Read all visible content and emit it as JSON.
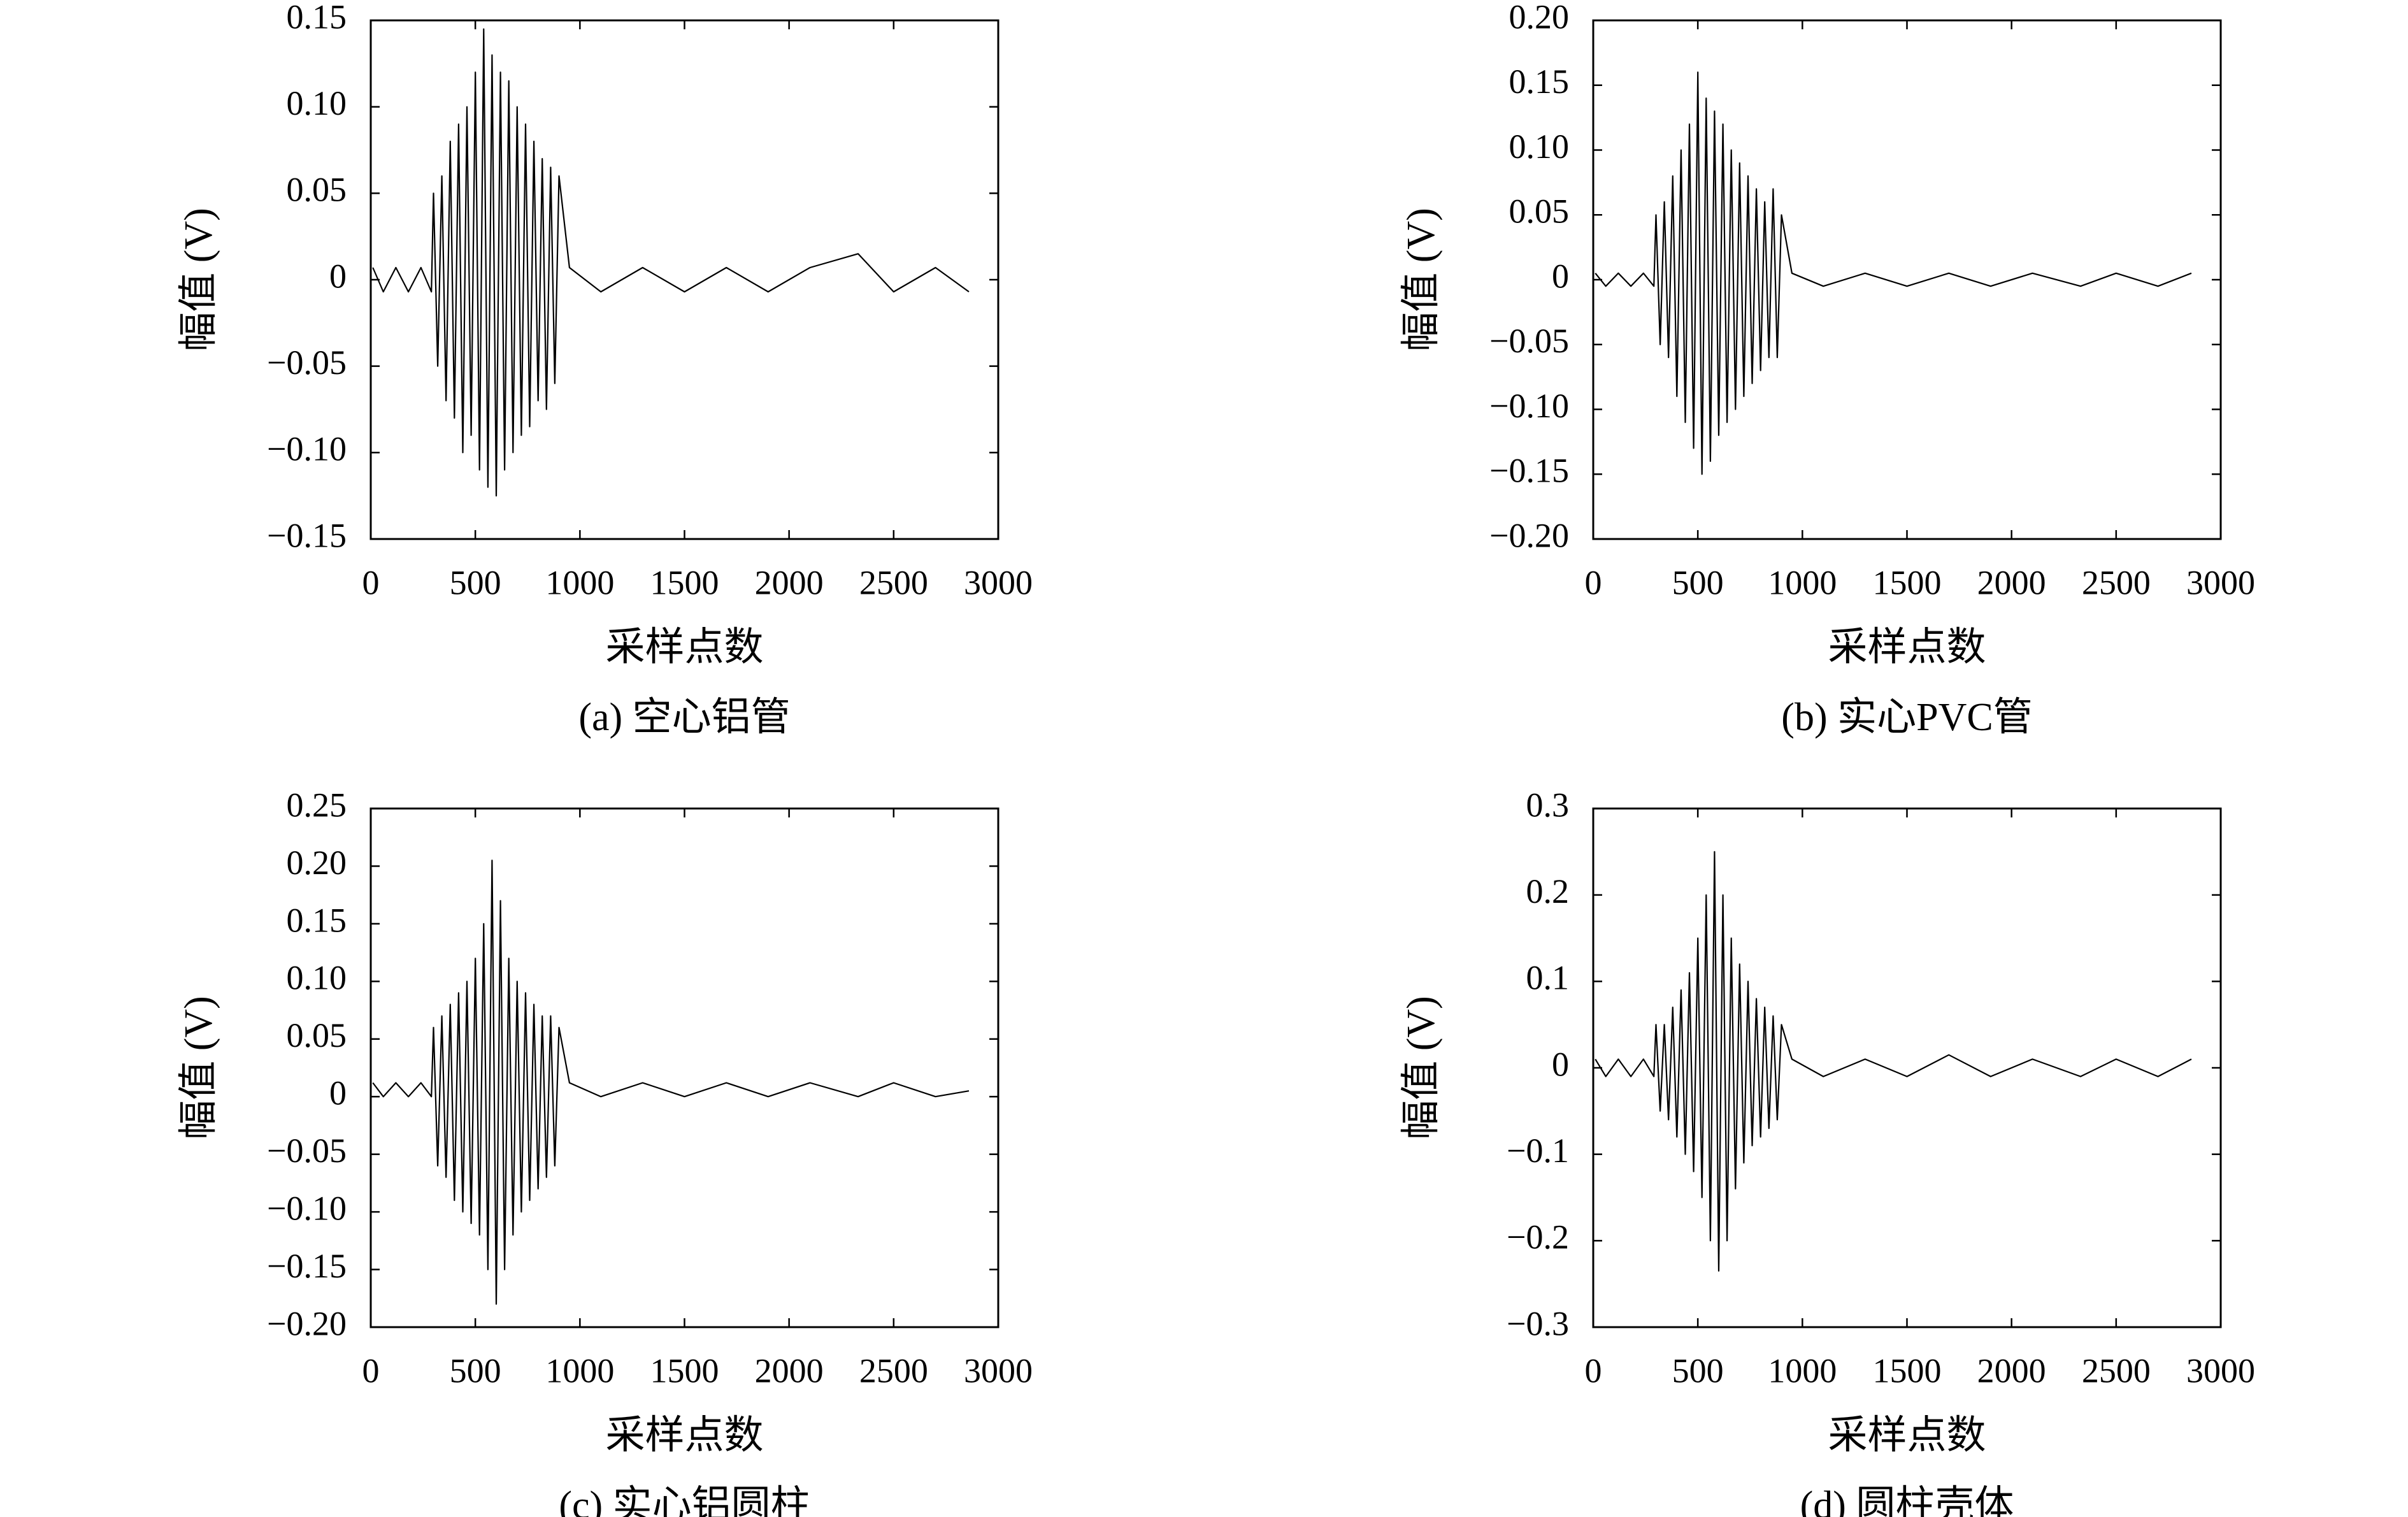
{
  "chart_data": [
    {
      "type": "line",
      "caption": "(a) 空心铝管",
      "xlabel": "采样点数",
      "ylabel": "幅值 (V)",
      "color": "#000000",
      "x": [
        10,
        60,
        120,
        180,
        240,
        290,
        300,
        320,
        340,
        360,
        380,
        400,
        420,
        440,
        460,
        480,
        500,
        520,
        540,
        560,
        580,
        600,
        620,
        640,
        660,
        680,
        700,
        720,
        740,
        760,
        780,
        800,
        820,
        840,
        860,
        880,
        900,
        950,
        1100,
        1300,
        1500,
        1700,
        1900,
        2100,
        2330,
        2500,
        2700,
        2860
      ],
      "values": [
        0.007,
        -0.007,
        0.007,
        -0.007,
        0.007,
        -0.007,
        0.05,
        -0.05,
        0.06,
        -0.07,
        0.08,
        -0.08,
        0.09,
        -0.1,
        0.1,
        -0.09,
        0.12,
        -0.11,
        0.145,
        -0.12,
        0.13,
        -0.125,
        0.12,
        -0.11,
        0.115,
        -0.1,
        0.1,
        -0.09,
        0.09,
        -0.085,
        0.08,
        -0.07,
        0.07,
        -0.075,
        0.065,
        -0.06,
        0.06,
        0.007,
        -0.007,
        0.007,
        -0.007,
        0.007,
        -0.007,
        0.007,
        0.015,
        -0.007,
        0.007,
        -0.007
      ],
      "xlim": [
        0,
        3000
      ],
      "xticks": [
        0,
        500,
        1000,
        1500,
        2000,
        2500,
        3000
      ],
      "ylim": [
        -0.15,
        0.15
      ],
      "yticks": [
        {
          "value": -0.15,
          "label": "−0.15"
        },
        {
          "value": -0.1,
          "label": "−0.10"
        },
        {
          "value": -0.05,
          "label": "−0.05"
        },
        0,
        0.05,
        {
          "value": 0.1,
          "label": "0.10"
        },
        0.15
      ]
    },
    {
      "type": "line",
      "caption": "(b) 实心PVC管",
      "xlabel": "采样点数",
      "ylabel": "幅值 (V)",
      "color": "#000000",
      "x": [
        10,
        60,
        120,
        180,
        240,
        290,
        300,
        320,
        340,
        360,
        380,
        400,
        420,
        440,
        460,
        480,
        500,
        520,
        540,
        560,
        580,
        600,
        620,
        640,
        660,
        680,
        700,
        720,
        740,
        760,
        780,
        800,
        820,
        840,
        860,
        880,
        900,
        950,
        1100,
        1300,
        1500,
        1700,
        1900,
        2100,
        2330,
        2500,
        2700,
        2860
      ],
      "values": [
        0.005,
        -0.005,
        0.005,
        -0.005,
        0.005,
        -0.005,
        0.05,
        -0.05,
        0.06,
        -0.06,
        0.08,
        -0.09,
        0.1,
        -0.11,
        0.12,
        -0.13,
        0.16,
        -0.15,
        0.14,
        -0.14,
        0.13,
        -0.12,
        0.12,
        -0.11,
        0.1,
        -0.1,
        0.09,
        -0.09,
        0.08,
        -0.08,
        0.07,
        -0.07,
        0.06,
        -0.06,
        0.07,
        -0.06,
        0.05,
        0.005,
        -0.005,
        0.005,
        -0.005,
        0.005,
        -0.005,
        0.005,
        -0.005,
        0.005,
        -0.005,
        0.005
      ],
      "xlim": [
        0,
        3000
      ],
      "xticks": [
        0,
        500,
        1000,
        1500,
        2000,
        2500,
        3000
      ],
      "ylim": [
        -0.2,
        0.2
      ],
      "yticks": [
        {
          "value": -0.2,
          "label": "−0.20"
        },
        {
          "value": -0.15,
          "label": "−0.15"
        },
        {
          "value": -0.1,
          "label": "−0.10"
        },
        {
          "value": -0.05,
          "label": "−0.05"
        },
        0,
        0.05,
        {
          "value": 0.1,
          "label": "0.10"
        },
        0.15,
        {
          "value": 0.2,
          "label": "0.20"
        }
      ]
    },
    {
      "type": "line",
      "caption": "(c) 实心铝圆柱",
      "xlabel": "采样点数",
      "ylabel": "幅值 (V)",
      "color": "#000000",
      "x": [
        10,
        60,
        120,
        180,
        240,
        290,
        300,
        320,
        340,
        360,
        380,
        400,
        420,
        440,
        460,
        480,
        500,
        520,
        540,
        560,
        580,
        600,
        620,
        640,
        660,
        680,
        700,
        720,
        740,
        760,
        780,
        800,
        820,
        840,
        860,
        880,
        900,
        950,
        1100,
        1300,
        1500,
        1700,
        1900,
        2100,
        2330,
        2500,
        2700,
        2860
      ],
      "values": [
        0.012,
        0,
        0.012,
        0,
        0.012,
        0,
        0.06,
        -0.06,
        0.07,
        -0.07,
        0.08,
        -0.09,
        0.09,
        -0.1,
        0.1,
        -0.11,
        0.12,
        -0.12,
        0.15,
        -0.15,
        0.205,
        -0.18,
        0.17,
        -0.15,
        0.12,
        -0.12,
        0.1,
        -0.1,
        0.09,
        -0.09,
        0.08,
        -0.08,
        0.07,
        -0.07,
        0.07,
        -0.06,
        0.06,
        0.012,
        0,
        0.012,
        0,
        0.012,
        0,
        0.012,
        0,
        0.012,
        0,
        0.005
      ],
      "xlim": [
        0,
        3000
      ],
      "xticks": [
        0,
        500,
        1000,
        1500,
        2000,
        2500,
        3000
      ],
      "ylim": [
        -0.2,
        0.25
      ],
      "yticks": [
        {
          "value": -0.2,
          "label": "−0.20"
        },
        {
          "value": -0.15,
          "label": "−0.15"
        },
        {
          "value": -0.1,
          "label": "−0.10"
        },
        {
          "value": -0.05,
          "label": "−0.05"
        },
        0,
        0.05,
        {
          "value": 0.1,
          "label": "0.10"
        },
        0.15,
        {
          "value": 0.2,
          "label": "0.20"
        },
        0.25
      ]
    },
    {
      "type": "line",
      "caption": "(d) 圆柱壳体",
      "xlabel": "采样点数",
      "ylabel": "幅值 (V)",
      "color": "#000000",
      "x": [
        10,
        60,
        120,
        180,
        240,
        290,
        300,
        320,
        340,
        360,
        380,
        400,
        420,
        440,
        460,
        480,
        500,
        520,
        540,
        560,
        580,
        600,
        620,
        640,
        660,
        680,
        700,
        720,
        740,
        760,
        780,
        800,
        820,
        840,
        860,
        880,
        900,
        950,
        1100,
        1300,
        1500,
        1700,
        1900,
        2100,
        2330,
        2500,
        2700,
        2860
      ],
      "values": [
        0.01,
        -0.01,
        0.01,
        -0.01,
        0.01,
        -0.01,
        0.05,
        -0.05,
        0.05,
        -0.06,
        0.07,
        -0.08,
        0.09,
        -0.1,
        0.11,
        -0.12,
        0.15,
        -0.15,
        0.2,
        -0.2,
        0.25,
        -0.235,
        0.2,
        -0.2,
        0.15,
        -0.14,
        0.12,
        -0.11,
        0.1,
        -0.09,
        0.08,
        -0.08,
        0.07,
        -0.07,
        0.06,
        -0.06,
        0.05,
        0.01,
        -0.01,
        0.01,
        -0.01,
        0.015,
        -0.01,
        0.01,
        -0.01,
        0.01,
        -0.01,
        0.01
      ],
      "xlim": [
        0,
        3000
      ],
      "xticks": [
        0,
        500,
        1000,
        1500,
        2000,
        2500,
        3000
      ],
      "ylim": [
        -0.3,
        0.3
      ],
      "yticks": [
        {
          "value": -0.3,
          "label": "−0.3"
        },
        {
          "value": -0.2,
          "label": "−0.2"
        },
        {
          "value": -0.1,
          "label": "−0.1"
        },
        0,
        0.1,
        0.2,
        0.3
      ]
    }
  ]
}
